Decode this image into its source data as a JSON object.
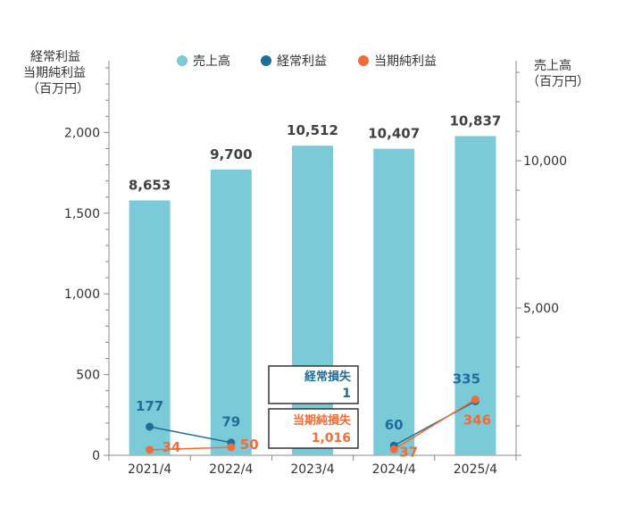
{
  "legend": [
    {
      "label": "売上高",
      "color": "#7bcad8"
    },
    {
      "label": "経常利益",
      "color": "#1f6e9a"
    },
    {
      "label": "当期純利益",
      "color": "#f26b38"
    }
  ],
  "left_axis": {
    "title_line1": "経常利益",
    "title_line2": "当期純利益",
    "title_line3": "（百万円）"
  },
  "right_axis": {
    "title_line1": "売上高",
    "title_line2": "（百万円）"
  },
  "loss_box1": {
    "title": "経常損失",
    "value": "1",
    "color": "#1f6e9a"
  },
  "loss_box2": {
    "title": "当期純損失",
    "value": "1,016",
    "color": "#f26b38"
  },
  "chart_data": {
    "type": "bar",
    "categories": [
      "2021/4",
      "2022/4",
      "2023/4",
      "2024/4",
      "2025/4"
    ],
    "left_ylim": [
      0,
      2500
    ],
    "left_ticks": [
      0,
      500,
      1000,
      1500,
      2000
    ],
    "left_tick_labels": [
      "0",
      "500",
      "1,000",
      "1,500",
      "2,000"
    ],
    "right_ylim": [
      0,
      13700
    ],
    "right_ticks": [
      5000,
      10000
    ],
    "right_tick_labels": [
      "5,000",
      "10,000"
    ],
    "series": [
      {
        "name": "売上高",
        "type": "bar",
        "axis": "right",
        "color": "#7bcad8",
        "values": [
          8653,
          9700,
          10512,
          10407,
          10837
        ],
        "labels": [
          "8,653",
          "9,700",
          "10,512",
          "10,407",
          "10,837"
        ]
      },
      {
        "name": "経常利益",
        "type": "line",
        "axis": "left",
        "color": "#1f6e9a",
        "values": [
          177,
          79,
          null,
          60,
          335
        ],
        "labels": [
          "177",
          "79",
          "",
          "60",
          "335"
        ]
      },
      {
        "name": "当期純利益",
        "type": "line",
        "axis": "left",
        "color": "#f26b38",
        "values": [
          34,
          50,
          null,
          37,
          346
        ],
        "labels": [
          "34",
          "50",
          "",
          "37",
          "346"
        ]
      }
    ]
  }
}
